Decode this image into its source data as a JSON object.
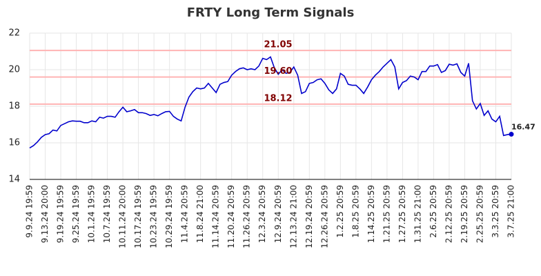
{
  "chart_data": {
    "type": "line",
    "title": "FRTY Long Term Signals",
    "categories": [
      "9.9.24 19:59",
      null,
      null,
      null,
      "9.13.24 20:00",
      null,
      null,
      null,
      "9.19.24 19:59",
      null,
      null,
      null,
      "9.25.24 19:59",
      null,
      null,
      null,
      "10.1.24 19:59",
      null,
      null,
      null,
      "10.7.24 19:59",
      null,
      null,
      null,
      "10.11.24 20:00",
      null,
      null,
      null,
      "10.17.24 19:59",
      null,
      null,
      null,
      "10.23.24 19:59",
      null,
      null,
      null,
      "10.29.24 19:59",
      null,
      null,
      null,
      "11.4.24 20:59",
      null,
      null,
      null,
      "11.8.24 21:00",
      null,
      null,
      null,
      "11.14.24 20:59",
      null,
      null,
      null,
      "11.20.24 20:59",
      null,
      null,
      null,
      "11.26.24 20:59",
      null,
      null,
      null,
      "12.3.24 20:59",
      null,
      null,
      null,
      "12.9.24 20:59",
      null,
      null,
      null,
      "12.13.24 21:00",
      null,
      null,
      null,
      "12.19.24 20:59",
      null,
      null,
      null,
      "12.26.24 20:59",
      null,
      null,
      null,
      "1.2.25 20:59",
      null,
      null,
      null,
      "1.8.25 20:59",
      null,
      null,
      null,
      "1.14.25 20:59",
      null,
      null,
      null,
      "1.21.25 20:59",
      null,
      null,
      null,
      "1.27.25 20:59",
      null,
      null,
      null,
      "1.31.25 21:00",
      null,
      null,
      null,
      "2.6.25 20:59",
      null,
      null,
      null,
      "2.12.25 20:59",
      null,
      null,
      null,
      "2.19.25 20:59",
      null,
      null,
      null,
      "2.25.25 20:59",
      null,
      null,
      null,
      "3.3.25 20:59",
      null,
      null,
      null,
      "3.7.25 21:00"
    ],
    "values": [
      15.72,
      15.85,
      16.05,
      16.3,
      16.45,
      16.5,
      16.7,
      16.65,
      16.95,
      17.05,
      17.15,
      17.2,
      17.18,
      17.18,
      17.1,
      17.1,
      17.2,
      17.15,
      17.4,
      17.35,
      17.45,
      17.45,
      17.4,
      17.7,
      17.95,
      17.7,
      17.75,
      17.82,
      17.65,
      17.65,
      17.6,
      17.5,
      17.55,
      17.48,
      17.6,
      17.7,
      17.72,
      17.45,
      17.3,
      17.2,
      17.95,
      18.5,
      18.8,
      19.0,
      18.95,
      19.0,
      19.25,
      19.0,
      18.75,
      19.2,
      19.3,
      19.35,
      19.7,
      19.9,
      20.05,
      20.1,
      20.0,
      20.05,
      20.0,
      20.2,
      20.62,
      20.55,
      20.7,
      20.1,
      19.75,
      20.0,
      19.8,
      19.85,
      20.15,
      19.7,
      18.7,
      18.8,
      19.25,
      19.3,
      19.45,
      19.5,
      19.25,
      18.9,
      18.7,
      18.95,
      19.8,
      19.65,
      19.2,
      19.15,
      19.15,
      18.95,
      18.7,
      19.05,
      19.45,
      19.7,
      19.9,
      20.15,
      20.35,
      20.55,
      20.15,
      18.95,
      19.3,
      19.4,
      19.65,
      19.6,
      19.45,
      19.9,
      19.9,
      20.2,
      20.2,
      20.28,
      19.85,
      19.95,
      20.3,
      20.25,
      20.32,
      19.85,
      19.65,
      20.35,
      18.3,
      17.85,
      18.15,
      17.5,
      17.75,
      17.3,
      17.15,
      17.45,
      16.4,
      16.45,
      16.47
    ],
    "color": "#0000cc",
    "ylim": [
      14,
      22
    ],
    "yticks": [
      14,
      16,
      18,
      20,
      22
    ],
    "grid": true,
    "reference_lines": [
      {
        "value": 21.05,
        "label": "21.05"
      },
      {
        "value": 19.6,
        "label": "19.60"
      },
      {
        "value": 18.12,
        "label": "18.12"
      }
    ],
    "reference_color": "#ffb3b3",
    "reference_label_color": "#800000"
  }
}
